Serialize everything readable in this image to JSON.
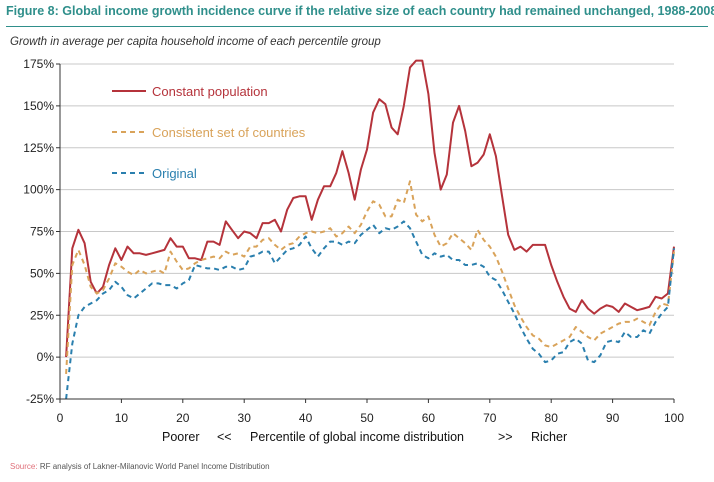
{
  "figure": {
    "title": "Figure 8:  Global income growth incidence curve if the relative size of each country had remained unchanged, 1988-2008",
    "subtitle": "Growth in average per capita household income of each percentile group",
    "source_label": "Source:",
    "source_text": "RF analysis of Lakner-Milanovic World Panel Income Distribution"
  },
  "colors": {
    "title": "#2f8f8b",
    "constant_population": "#b5333b",
    "consistent_set": "#d9a35a",
    "original": "#2a7fae",
    "grid": "#c8c8c8"
  },
  "chart_data": {
    "type": "line",
    "xlabel_parts": [
      "Poorer",
      "<<",
      "Percentile of global income distribution",
      ">>",
      "Richer"
    ],
    "xlim": [
      0,
      100
    ],
    "ylim": [
      -0.25,
      1.75
    ],
    "xticks": [
      "0",
      "10",
      "20",
      "30",
      "40",
      "50",
      "60",
      "70",
      "80",
      "90",
      "100"
    ],
    "yticks": [
      "-25%",
      "0%",
      "25%",
      "50%",
      "75%",
      "100%",
      "125%",
      "150%",
      "175%"
    ],
    "grid": "horizontal",
    "legend_placement": "top-left",
    "x": [
      1,
      2,
      3,
      4,
      5,
      6,
      7,
      8,
      9,
      10,
      11,
      12,
      13,
      14,
      15,
      16,
      17,
      18,
      19,
      20,
      21,
      22,
      23,
      24,
      25,
      26,
      27,
      28,
      29,
      30,
      31,
      32,
      33,
      34,
      35,
      36,
      37,
      38,
      39,
      40,
      41,
      42,
      43,
      44,
      45,
      46,
      47,
      48,
      49,
      50,
      51,
      52,
      53,
      54,
      55,
      56,
      57,
      58,
      59,
      60,
      61,
      62,
      63,
      64,
      65,
      66,
      67,
      68,
      69,
      70,
      71,
      72,
      73,
      74,
      75,
      76,
      77,
      78,
      79,
      80,
      81,
      82,
      83,
      84,
      85,
      86,
      87,
      88,
      89,
      90,
      91,
      92,
      93,
      94,
      95,
      96,
      97,
      98,
      99,
      100
    ],
    "series": [
      {
        "name": "Constant population",
        "style": "solid",
        "values": [
          0.0,
          0.65,
          0.76,
          0.68,
          0.45,
          0.38,
          0.42,
          0.55,
          0.65,
          0.58,
          0.66,
          0.62,
          0.62,
          0.61,
          0.62,
          0.63,
          0.64,
          0.71,
          0.66,
          0.66,
          0.59,
          0.59,
          0.58,
          0.69,
          0.69,
          0.67,
          0.81,
          0.76,
          0.71,
          0.75,
          0.74,
          0.71,
          0.8,
          0.8,
          0.82,
          0.75,
          0.88,
          0.95,
          0.96,
          0.96,
          0.82,
          0.94,
          1.02,
          1.02,
          1.1,
          1.23,
          1.1,
          0.94,
          1.12,
          1.24,
          1.46,
          1.54,
          1.51,
          1.37,
          1.33,
          1.5,
          1.73,
          1.77,
          1.77,
          1.57,
          1.22,
          1.0,
          1.09,
          1.4,
          1.5,
          1.35,
          1.14,
          1.16,
          1.21,
          1.33,
          1.2,
          0.96,
          0.73,
          0.64,
          0.66,
          0.63,
          0.67,
          0.67,
          0.67,
          0.55,
          0.45,
          0.36,
          0.29,
          0.27,
          0.34,
          0.29,
          0.26,
          0.29,
          0.31,
          0.3,
          0.27,
          0.32,
          0.3,
          0.28,
          0.29,
          0.3,
          0.36,
          0.35,
          0.38,
          0.66
        ]
      },
      {
        "name": "Consistent set of countries",
        "style": "dashed",
        "values": [
          -0.1,
          0.55,
          0.64,
          0.55,
          0.42,
          0.38,
          0.4,
          0.47,
          0.56,
          0.54,
          0.51,
          0.49,
          0.52,
          0.5,
          0.51,
          0.52,
          0.5,
          0.63,
          0.57,
          0.52,
          0.53,
          0.56,
          0.58,
          0.59,
          0.6,
          0.59,
          0.63,
          0.61,
          0.62,
          0.6,
          0.66,
          0.66,
          0.7,
          0.71,
          0.67,
          0.64,
          0.67,
          0.68,
          0.72,
          0.74,
          0.75,
          0.74,
          0.75,
          0.77,
          0.72,
          0.74,
          0.78,
          0.74,
          0.79,
          0.87,
          0.93,
          0.91,
          0.84,
          0.84,
          0.94,
          0.92,
          1.05,
          0.85,
          0.81,
          0.84,
          0.73,
          0.66,
          0.68,
          0.74,
          0.71,
          0.68,
          0.64,
          0.76,
          0.7,
          0.66,
          0.6,
          0.51,
          0.41,
          0.31,
          0.24,
          0.18,
          0.13,
          0.11,
          0.07,
          0.06,
          0.08,
          0.1,
          0.12,
          0.18,
          0.15,
          0.12,
          0.1,
          0.14,
          0.16,
          0.18,
          0.2,
          0.21,
          0.21,
          0.23,
          0.21,
          0.19,
          0.27,
          0.32,
          0.31,
          0.63
        ]
      },
      {
        "name": "Original",
        "style": "dashed",
        "values": [
          -0.25,
          0.08,
          0.25,
          0.3,
          0.32,
          0.34,
          0.38,
          0.4,
          0.45,
          0.42,
          0.37,
          0.35,
          0.38,
          0.41,
          0.44,
          0.44,
          0.43,
          0.43,
          0.41,
          0.44,
          0.46,
          0.55,
          0.54,
          0.53,
          0.53,
          0.52,
          0.54,
          0.54,
          0.52,
          0.53,
          0.6,
          0.61,
          0.63,
          0.63,
          0.56,
          0.6,
          0.64,
          0.65,
          0.67,
          0.72,
          0.65,
          0.6,
          0.65,
          0.69,
          0.69,
          0.67,
          0.69,
          0.68,
          0.73,
          0.76,
          0.79,
          0.74,
          0.77,
          0.76,
          0.78,
          0.81,
          0.77,
          0.69,
          0.61,
          0.59,
          0.62,
          0.6,
          0.61,
          0.58,
          0.58,
          0.55,
          0.55,
          0.56,
          0.54,
          0.48,
          0.46,
          0.4,
          0.33,
          0.26,
          0.18,
          0.11,
          0.05,
          0.02,
          -0.03,
          -0.02,
          0.02,
          0.03,
          0.09,
          0.11,
          0.08,
          -0.02,
          -0.03,
          0.01,
          0.09,
          0.1,
          0.09,
          0.15,
          0.12,
          0.12,
          0.16,
          0.14,
          0.21,
          0.26,
          0.3,
          0.65
        ]
      }
    ]
  }
}
